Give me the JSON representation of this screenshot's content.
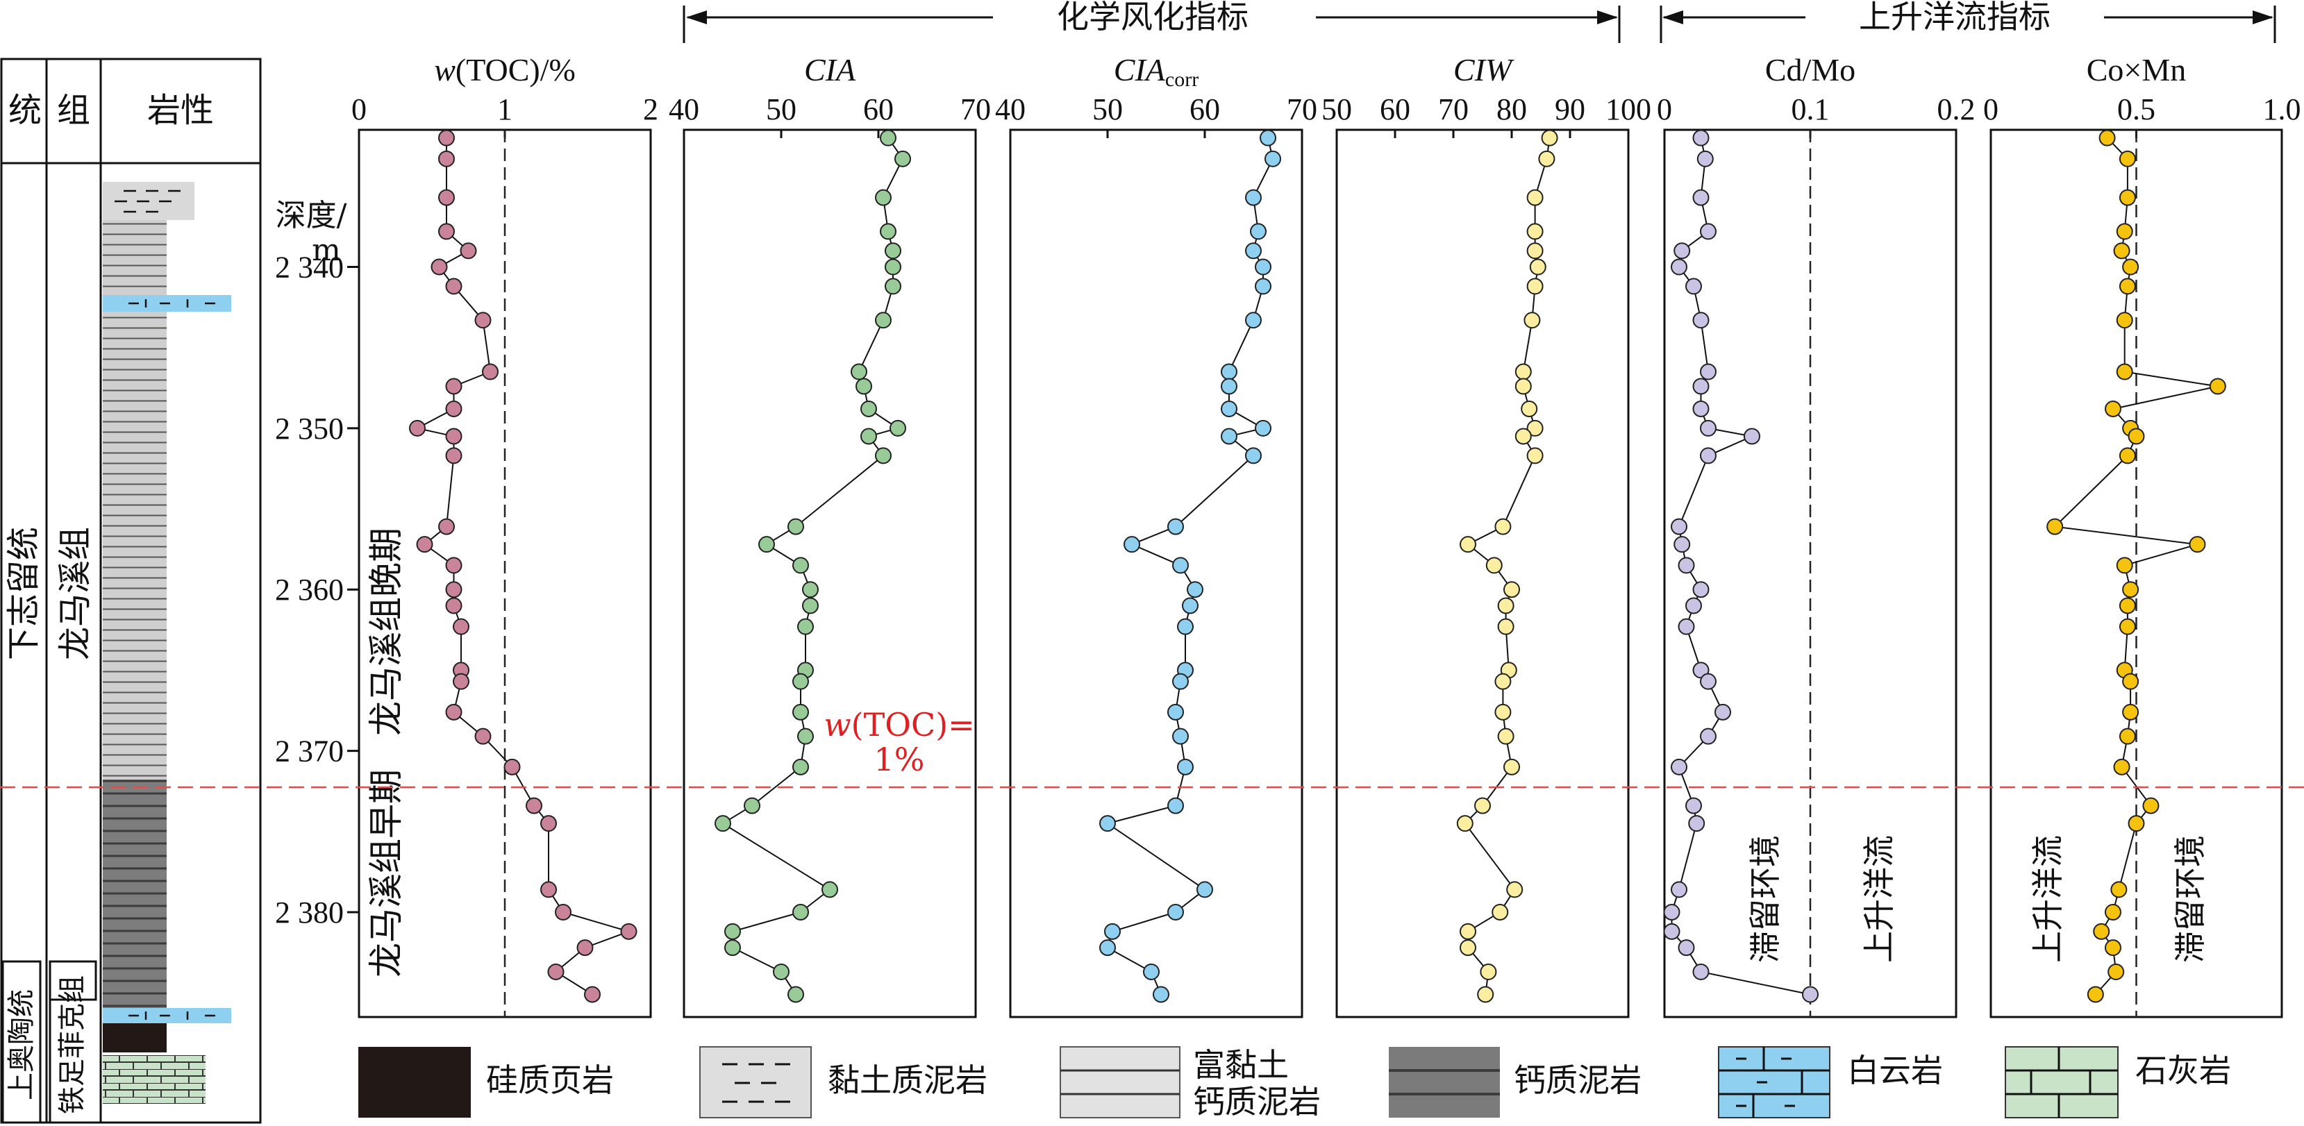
{
  "column": {
    "header_series": "统",
    "header_formation": "组",
    "header_lithology": "岩性",
    "series_upper": "下志留统",
    "formation_upper": "龙马溪组",
    "series_lower": "上奥陶统",
    "formation_lower": "铁足菲克组",
    "depth_label_1": "深度/",
    "depth_label_2": "m",
    "depth_ticks": [
      "2 340",
      "2 350",
      "2 360",
      "2 370",
      "2 380"
    ],
    "late_stage": "龙马溪组晚期",
    "early_stage": "龙马溪组早期"
  },
  "groups": {
    "weathering": "化学风化指标",
    "upwelling": "上升洋流指标"
  },
  "annotations": {
    "toc_line_1": "w(TOC)=",
    "toc_line_2": "1%",
    "cdmo_left": "滞留环境",
    "cdmo_right": "上升洋流",
    "comn_left": "上升洋流",
    "comn_right": "滞留环境"
  },
  "legend": [
    {
      "label": "硅质页岩",
      "pattern": "siliceous-shale"
    },
    {
      "label": "黏土质泥岩",
      "pattern": "clay-mudstone"
    },
    {
      "label": "富黏土",
      "label2": "钙质泥岩",
      "pattern": "clay-rich-calcareous-mudstone"
    },
    {
      "label": "钙质泥岩",
      "pattern": "calcareous-mudstone"
    },
    {
      "label": "白云岩",
      "pattern": "dolomite"
    },
    {
      "label": "石灰岩",
      "pattern": "limestone"
    }
  ],
  "chart_data": {
    "type": "scatter",
    "y_axis": {
      "label": "深度/m",
      "range": [
        2331.5,
        2386.5
      ],
      "reversed": true,
      "ticks": [
        2340,
        2350,
        2360,
        2370,
        2380
      ]
    },
    "boundary_depth": 2371.3,
    "depths": [
      2332.0,
      2333.3,
      2335.7,
      2337.8,
      2339.0,
      2340.0,
      2341.2,
      2343.3,
      2346.5,
      2347.4,
      2348.8,
      2350.0,
      2350.5,
      2351.7,
      2356.1,
      2357.2,
      2358.5,
      2360.0,
      2361.0,
      2362.3,
      2365.0,
      2365.7,
      2367.6,
      2369.1,
      2371.0,
      2373.4,
      2374.5,
      2378.6,
      2380.0,
      2381.2,
      2382.2,
      2383.7,
      2385.1
    ],
    "panels": [
      {
        "name": "w(TOC)/%",
        "title_main": "w",
        "title_rest": "(TOC)/%",
        "xlim": [
          0,
          2
        ],
        "ticks": [
          "0",
          "1",
          "2"
        ],
        "tick_values": [
          0,
          1,
          2
        ],
        "ref_line": 1,
        "color": "#c9849a",
        "values": [
          0.6,
          0.6,
          0.6,
          0.6,
          0.75,
          0.55,
          0.65,
          0.85,
          0.9,
          0.65,
          0.65,
          0.4,
          0.65,
          0.65,
          0.6,
          0.45,
          0.65,
          0.65,
          0.65,
          0.7,
          0.7,
          0.7,
          0.65,
          0.85,
          1.05,
          1.2,
          1.3,
          1.3,
          1.4,
          1.85,
          1.55,
          1.35,
          1.6
        ]
      },
      {
        "name": "CIA",
        "title_main": "CIA",
        "xlim": [
          40,
          70
        ],
        "ticks": [
          "40",
          "50",
          "60",
          "70"
        ],
        "tick_values": [
          40,
          50,
          60,
          70
        ],
        "color": "#98cb98",
        "values": [
          61.0,
          62.5,
          60.5,
          61.0,
          61.5,
          61.5,
          61.5,
          60.5,
          58.0,
          58.5,
          59.0,
          62.0,
          59.0,
          60.5,
          51.5,
          48.5,
          52.0,
          53.0,
          53.0,
          52.5,
          52.5,
          52.0,
          52.0,
          52.5,
          52.0,
          47.0,
          44.0,
          55.0,
          52.0,
          45.0,
          45.0,
          50.0,
          51.5
        ]
      },
      {
        "name": "CIAcorr",
        "title_main": "CIA",
        "title_sub": "corr",
        "xlim": [
          40,
          70
        ],
        "ticks": [
          "40",
          "50",
          "60",
          "70"
        ],
        "tick_values": [
          40,
          50,
          60,
          70
        ],
        "color": "#8fcff0",
        "values": [
          66.5,
          67.0,
          65.0,
          65.5,
          65.0,
          66.0,
          66.0,
          65.0,
          62.5,
          62.5,
          62.5,
          66.0,
          62.5,
          65.0,
          57.0,
          52.5,
          57.5,
          59.0,
          58.5,
          58.0,
          58.0,
          57.5,
          57.0,
          57.5,
          58.0,
          57.0,
          50.0,
          60.0,
          57.0,
          50.5,
          50.0,
          54.5,
          55.5
        ]
      },
      {
        "name": "CIW",
        "title_main": "CIW",
        "xlim": [
          50,
          100
        ],
        "ticks": [
          "50",
          "60",
          "70",
          "80",
          "90",
          "100"
        ],
        "tick_values": [
          50,
          60,
          70,
          80,
          90,
          100
        ],
        "color": "#fbeea0",
        "values": [
          86.5,
          86.0,
          84.0,
          84.0,
          84.0,
          84.5,
          84.0,
          83.5,
          82.0,
          82.0,
          83.0,
          84.0,
          82.0,
          84.0,
          78.5,
          72.5,
          77.0,
          80.0,
          79.0,
          79.0,
          79.5,
          78.5,
          78.5,
          79.0,
          80.0,
          75.0,
          72.0,
          80.5,
          78.0,
          72.5,
          72.5,
          76.0,
          75.5
        ]
      },
      {
        "name": "Cd/Mo",
        "title_main": "Cd/Mo",
        "xlim": [
          0,
          0.2
        ],
        "ticks": [
          "0",
          "0.1",
          "0.2"
        ],
        "tick_values": [
          0,
          0.1,
          0.2
        ],
        "ref_line": 0.1,
        "color": "#cbc3e3",
        "values": [
          0.025,
          0.028,
          0.025,
          0.03,
          0.012,
          0.01,
          0.02,
          0.025,
          0.03,
          0.025,
          0.025,
          0.03,
          0.06,
          0.03,
          0.01,
          0.012,
          0.015,
          0.025,
          0.02,
          0.015,
          0.025,
          0.03,
          0.04,
          0.03,
          0.01,
          0.02,
          0.022,
          0.01,
          0.005,
          0.005,
          0.015,
          0.025,
          0.1
        ]
      },
      {
        "name": "Co×Mn",
        "title_main": "Co×Mn",
        "xlim": [
          0,
          1.0
        ],
        "ticks": [
          "0",
          "0.5",
          "1.0"
        ],
        "tick_values": [
          0,
          0.5,
          1.0
        ],
        "ref_line": 0.5,
        "color": "#f5c20e",
        "values": [
          0.4,
          0.47,
          0.47,
          0.46,
          0.45,
          0.48,
          0.47,
          0.46,
          0.46,
          0.78,
          0.42,
          0.48,
          0.5,
          0.47,
          0.22,
          0.71,
          0.46,
          0.48,
          0.47,
          0.47,
          0.46,
          0.48,
          0.48,
          0.47,
          0.45,
          0.55,
          0.5,
          0.44,
          0.42,
          0.38,
          0.42,
          0.43,
          0.36
        ]
      }
    ]
  }
}
